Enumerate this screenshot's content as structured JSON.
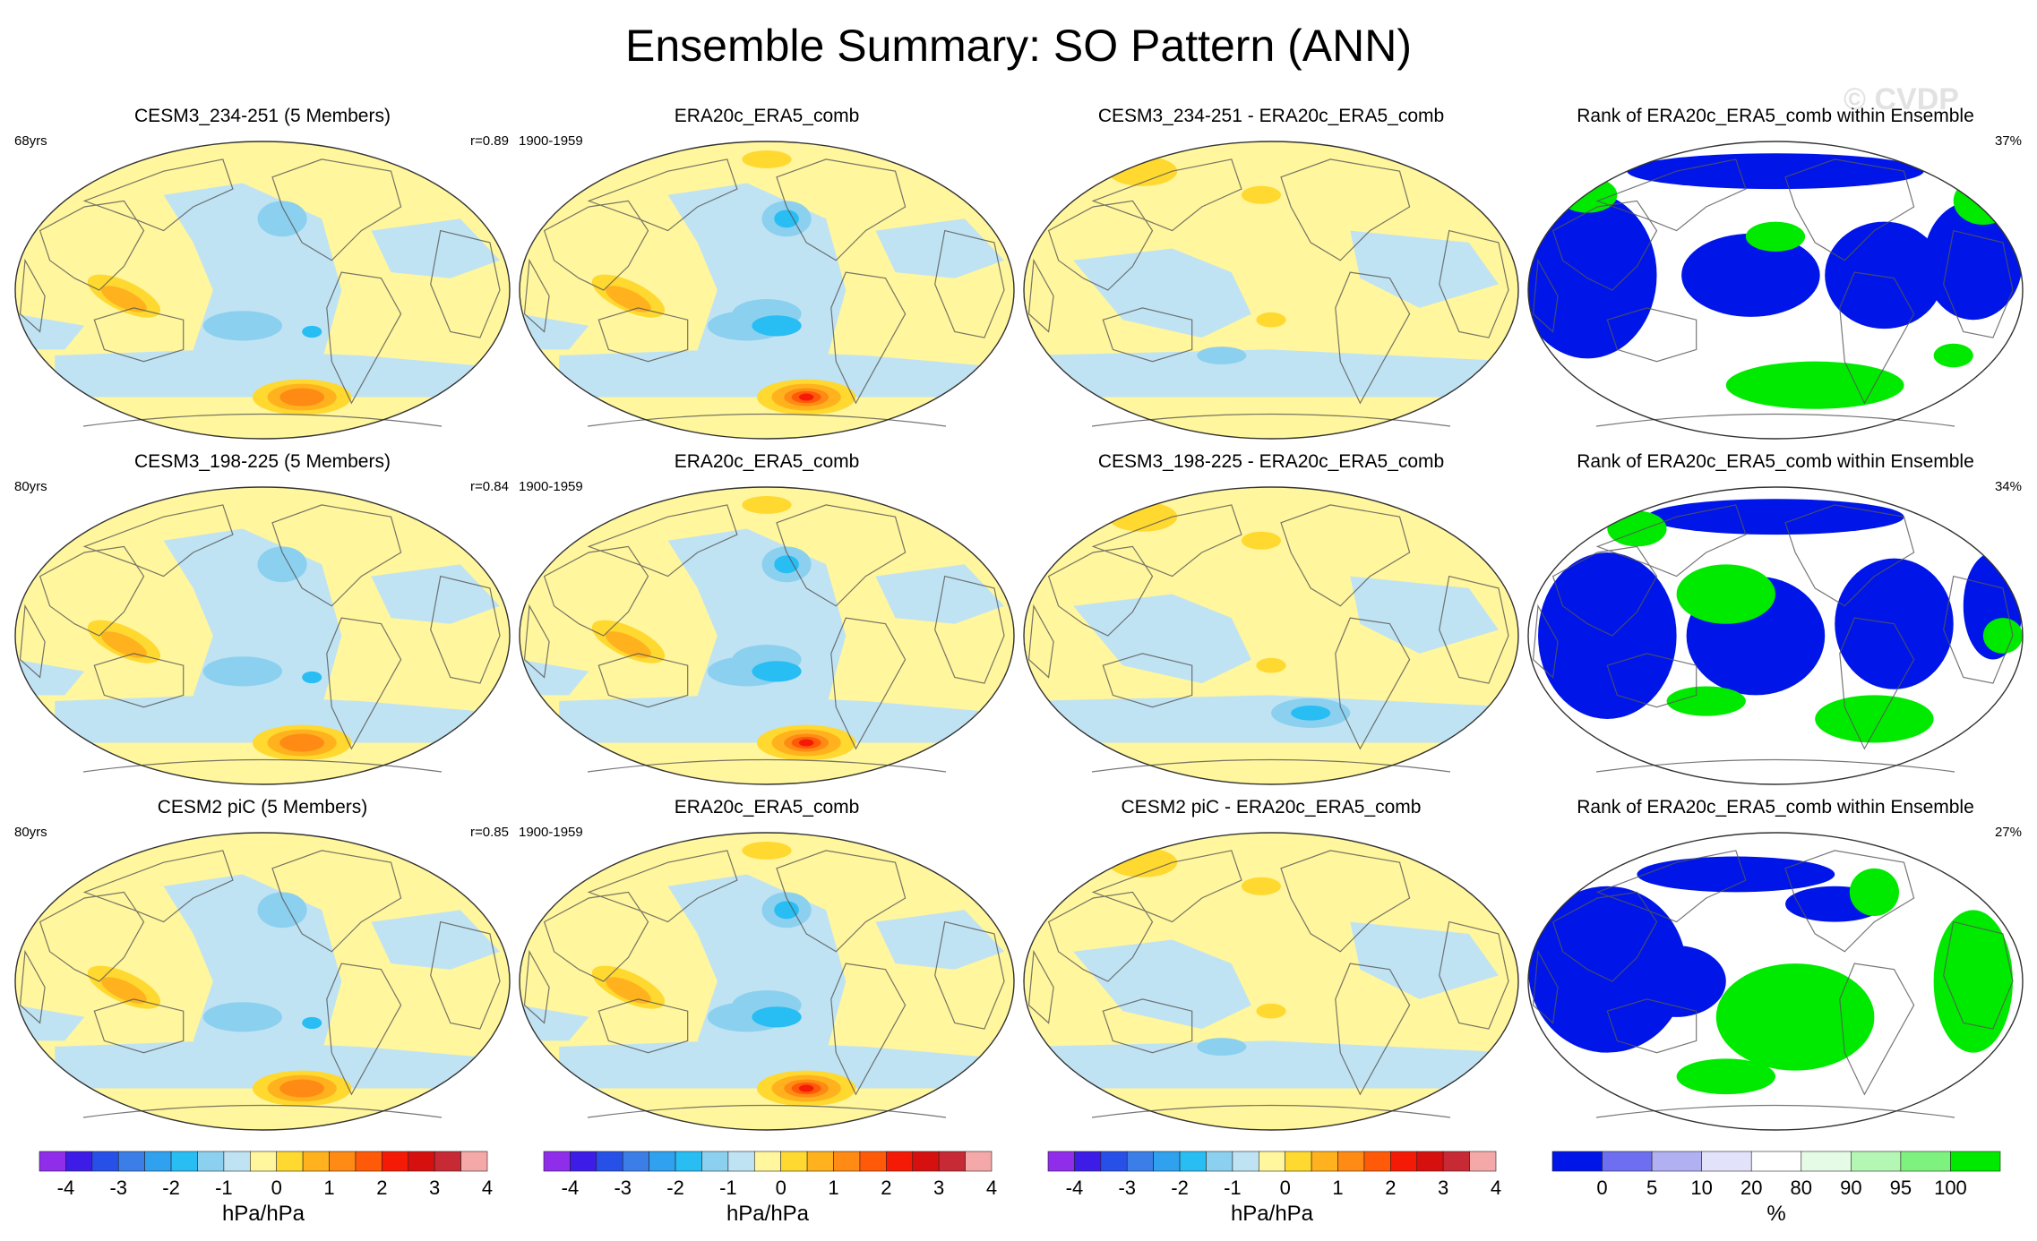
{
  "title": "Ensemble Summary: SO Pattern (ANN)",
  "watermark": "© CVDP",
  "colors": {
    "pattern_palette": [
      "#8f2dea",
      "#3c1ce6",
      "#2750e8",
      "#3b7ee8",
      "#2fa1ee",
      "#28bdf3",
      "#8cd0ef",
      "#c0e3f3",
      "#fff69d",
      "#ffd830",
      "#ffb21d",
      "#ff8a14",
      "#ff5a08",
      "#f51a06",
      "#d60f0f",
      "#c72a35",
      "#f4a8a8"
    ],
    "rank_palette": [
      "#0016e8",
      "#6e6ef0",
      "#b0b0f2",
      "#e2e2fa",
      "#ffffff",
      "#e6fbe6",
      "#b4f6b4",
      "#7ef27e",
      "#00ea00"
    ],
    "ocean": "#c0e3f3",
    "land_line": "#555555"
  },
  "rows": [
    {
      "model": {
        "title": "CESM3_234-251 (5 Members)",
        "left": "68yrs",
        "right": "r=0.89"
      },
      "obs": {
        "title": "ERA20c_ERA5_comb",
        "left": "1900-1959"
      },
      "diff": {
        "title": "CESM3_234-251 - ERA20c_ERA5_comb"
      },
      "rank": {
        "title": "Rank of ERA20c_ERA5_comb within Ensemble",
        "right": "37%"
      }
    },
    {
      "model": {
        "title": "CESM3_198-225 (5 Members)",
        "left": "80yrs",
        "right": "r=0.84"
      },
      "obs": {
        "title": "ERA20c_ERA5_comb",
        "left": "1900-1959"
      },
      "diff": {
        "title": "CESM3_198-225 - ERA20c_ERA5_comb"
      },
      "rank": {
        "title": "Rank of ERA20c_ERA5_comb within Ensemble",
        "right": "34%"
      }
    },
    {
      "model": {
        "title": "CESM2 piC (5 Members)",
        "left": "80yrs",
        "right": "r=0.85"
      },
      "obs": {
        "title": "ERA20c_ERA5_comb",
        "left": "1900-1959"
      },
      "diff": {
        "title": "CESM2 piC - ERA20c_ERA5_comb"
      },
      "rank": {
        "title": "Rank of ERA20c_ERA5_comb within Ensemble",
        "right": "27%"
      }
    }
  ],
  "chart_data": [
    {
      "type": "colorbar",
      "name": "pattern",
      "levels": [
        -4,
        -3.5,
        -3,
        -2.5,
        -2,
        -1.5,
        -1,
        -0.5,
        0,
        0.5,
        1,
        1.5,
        2,
        2.5,
        3,
        3.5,
        4
      ],
      "tick_labels": [
        "-4",
        "-3",
        "-2",
        "-1",
        "0",
        "1",
        "2",
        "3",
        "4"
      ],
      "unit_label": "hPa/hPa"
    },
    {
      "type": "colorbar",
      "name": "rank",
      "levels": [
        0,
        5,
        10,
        20,
        80,
        90,
        95,
        100
      ],
      "tick_labels": [
        "0",
        "5",
        "10",
        "20",
        "80",
        "90",
        "95",
        "100"
      ],
      "unit_label": "%"
    }
  ]
}
